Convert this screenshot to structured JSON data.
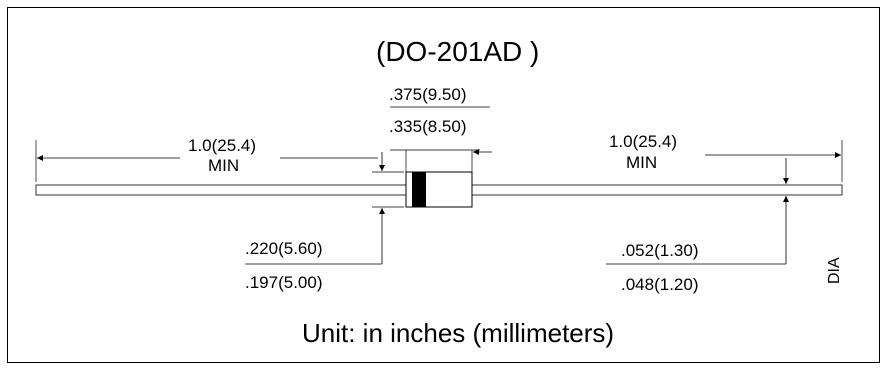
{
  "title": "(DO-201AD )",
  "body_length": {
    "max": ".375(9.50)",
    "min": ".335(8.50)"
  },
  "lead_length_left": {
    "value": "1.0(25.4)",
    "qualifier": "MIN"
  },
  "lead_length_right": {
    "value": "1.0(25.4)",
    "qualifier": "MIN"
  },
  "body_diameter": {
    "max": ".220(5.60)",
    "min": ".197(5.00)"
  },
  "lead_diameter": {
    "max": ".052(1.30)",
    "min": ".048(1.20)",
    "qualifier": "DIA"
  },
  "footer": "Unit: in inches (millimeters)"
}
